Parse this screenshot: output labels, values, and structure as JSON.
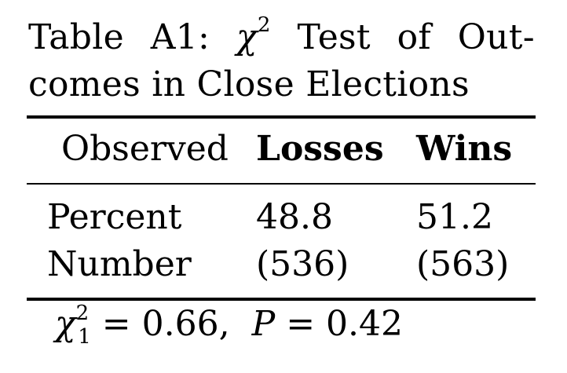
{
  "caption": {
    "words_line1": [
      "Table",
      "A1:",
      "χ",
      "Test",
      "of",
      "Out-"
    ],
    "chi_exponent": "2",
    "line2": "comes in Close Elections"
  },
  "table": {
    "headers": [
      "Observed",
      "Losses",
      "Wins"
    ],
    "rows": [
      [
        "Percent",
        "48.8",
        "51.2"
      ],
      [
        "Number",
        "(536)",
        "(563)"
      ]
    ]
  },
  "footer": {
    "chi": "χ",
    "chi_sup": "2",
    "chi_sub": "1",
    "chi_value": "= 0.66,",
    "p_var": "P",
    "p_value": "= 0.42"
  }
}
